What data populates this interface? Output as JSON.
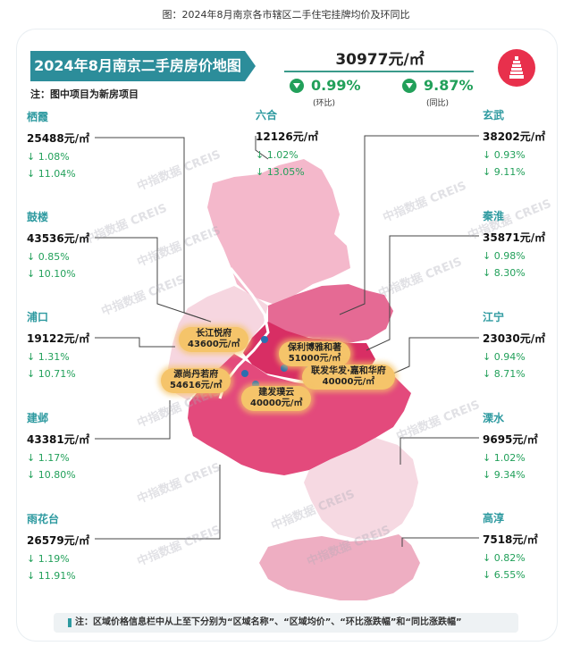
{
  "caption": "图：2024年8月南京各市辖区二手住宅挂牌均价及环同比",
  "title": "2024年8月南京二手房房价地图",
  "note": "注：图中项目为新房项目",
  "overall": {
    "price": "30977元/㎡",
    "mom": "0.99%",
    "mom_label": "(环比)",
    "yoy": "9.87%",
    "yoy_label": "(同比)"
  },
  "watermark": "中指数据 CREIS",
  "districts": {
    "qixia": {
      "name": "栖霞",
      "price": "25488元/㎡",
      "mom": "↓ 1.08%",
      "yoy": "↓ 11.04%"
    },
    "liuhe": {
      "name": "六合",
      "price": "12126元/㎡",
      "mom": "↓ 1.02%",
      "yoy": "↓ 13.05%"
    },
    "xuanwu": {
      "name": "玄武",
      "price": "38202元/㎡",
      "mom": "↓ 0.93%",
      "yoy": "↓ 9.11%"
    },
    "gulou": {
      "name": "鼓楼",
      "price": "43536元/㎡",
      "mom": "↓ 0.85%",
      "yoy": "↓ 10.10%"
    },
    "qinhuai": {
      "name": "秦淮",
      "price": "35871元/㎡",
      "mom": "↓ 0.98%",
      "yoy": "↓ 8.30%"
    },
    "pukou": {
      "name": "浦口",
      "price": "19122元/㎡",
      "mom": "↓ 1.31%",
      "yoy": "↓ 10.71%"
    },
    "jiangning": {
      "name": "江宁",
      "price": "23030元/㎡",
      "mom": "↓ 0.94%",
      "yoy": "↓ 8.71%"
    },
    "jianye": {
      "name": "建邺",
      "price": "43381元/㎡",
      "mom": "↓ 1.17%",
      "yoy": "↓ 10.80%"
    },
    "lishui": {
      "name": "溧水",
      "price": "9695元/㎡",
      "mom": "↓ 1.02%",
      "yoy": "↓ 9.34%"
    },
    "yuhuatai": {
      "name": "雨花台",
      "price": "26579元/㎡",
      "mom": "↓ 1.19%",
      "yoy": "↓ 11.91%"
    },
    "gaochun": {
      "name": "高淳",
      "price": "7518元/㎡",
      "mom": "↓ 0.82%",
      "yoy": "↓ 6.55%"
    }
  },
  "projects": {
    "p1": {
      "name": "长江悦府",
      "price": "43600元/㎡"
    },
    "p2": {
      "name": "保利博雅和著",
      "price": "51000元/㎡"
    },
    "p3": {
      "name": "源尚丹若府",
      "price": "54616元/㎡"
    },
    "p4": {
      "name": "联发华发·嘉和华府",
      "price": "40000元/㎡"
    },
    "p5": {
      "name": "建发璞云",
      "price": "40000元/㎡"
    }
  },
  "footer": "注：区域价格信息栏中从上至下分别为“区域名称”、“区域均价”、“环比涨跌幅”和“同比涨跌幅”",
  "colors": {
    "teal": "#2c8d9a",
    "green": "#22a05a",
    "map_dark": "#e0336a",
    "map_mid": "#ee8fae",
    "map_light": "#f6d6e0",
    "project_bg": "#f5c46a"
  }
}
